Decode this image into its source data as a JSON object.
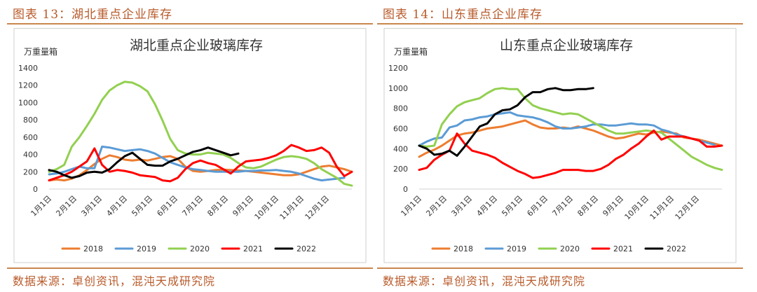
{
  "left": {
    "fig_title": "图表 13：湖北重点企业库存",
    "source": "数据来源：卓创资讯，混沌天成研究院"
  },
  "right": {
    "fig_title": "图表 14：山东重点企业库存",
    "source": "数据来源：卓创资讯，混沌天成研究院"
  },
  "chart_data": [
    {
      "type": "line",
      "title": "湖北重点企业玻璃库存",
      "ylabel": "万重量箱",
      "ylim": [
        0,
        1400
      ],
      "yticks": [
        0,
        200,
        400,
        600,
        800,
        1000,
        1200,
        1400
      ],
      "xlim": [
        0,
        12
      ],
      "xtick_labels": [
        "1月1日",
        "2月1日",
        "3月1日",
        "4月1日",
        "5月1日",
        "6月1日",
        "7月1日",
        "8月1日",
        "9月1日",
        "10月1日",
        "11月1日",
        "12月1日"
      ],
      "x_unit": "month-of-year (0 = 1月1日)",
      "legend_position": "bottom",
      "series": [
        {
          "name": "2018",
          "color": "#ed7d31",
          "x": [
            0,
            0.3,
            0.6,
            0.9,
            1.2,
            1.5,
            1.8,
            2.1,
            2.4,
            2.7,
            3.0,
            3.3,
            3.6,
            3.9,
            4.2,
            4.5,
            4.8,
            5.1,
            5.4,
            5.7,
            6.0,
            6.3,
            6.6,
            6.9,
            7.2,
            7.5,
            7.8,
            8.1,
            8.4,
            8.7,
            9.0,
            9.3,
            9.6,
            9.9,
            10.2,
            10.5,
            10.8,
            11.1,
            11.4,
            11.7,
            12.0
          ],
          "y": [
            100,
            110,
            100,
            120,
            160,
            220,
            290,
            350,
            390,
            370,
            340,
            330,
            340,
            330,
            350,
            370,
            380,
            350,
            260,
            210,
            200,
            210,
            220,
            225,
            220,
            215,
            210,
            200,
            190,
            180,
            170,
            160,
            160,
            170,
            200,
            230,
            260,
            270,
            250,
            230,
            200
          ]
        },
        {
          "name": "2019",
          "color": "#5b9bd5",
          "x": [
            0,
            0.3,
            0.6,
            0.9,
            1.2,
            1.5,
            1.8,
            2.1,
            2.4,
            2.7,
            3.0,
            3.3,
            3.6,
            3.9,
            4.2,
            4.5,
            4.8,
            5.1,
            5.4,
            5.7,
            6.0,
            6.3,
            6.6,
            6.9,
            7.2,
            7.5,
            7.8,
            8.1,
            8.4,
            8.7,
            9.0,
            9.3,
            9.6,
            9.9,
            10.2,
            10.5,
            10.8,
            11.1,
            11.4,
            11.7
          ],
          "y": [
            170,
            180,
            200,
            230,
            260,
            240,
            240,
            490,
            480,
            460,
            440,
            450,
            460,
            440,
            410,
            360,
            310,
            280,
            250,
            230,
            220,
            210,
            200,
            200,
            200,
            200,
            210,
            210,
            215,
            215,
            220,
            210,
            200,
            180,
            150,
            120,
            100,
            110,
            120,
            130
          ]
        },
        {
          "name": "2020",
          "color": "#92d050",
          "x": [
            0,
            0.3,
            0.6,
            0.9,
            1.2,
            1.5,
            1.8,
            2.1,
            2.4,
            2.7,
            3.0,
            3.3,
            3.6,
            3.9,
            4.2,
            4.5,
            4.8,
            5.1,
            5.4,
            5.7,
            6.0,
            6.3,
            6.6,
            6.9,
            7.2,
            7.5,
            7.8,
            8.1,
            8.4,
            8.7,
            9.0,
            9.3,
            9.6,
            9.9,
            10.2,
            10.5,
            10.8,
            11.1,
            11.4,
            11.7,
            12.0
          ],
          "y": [
            200,
            230,
            280,
            490,
            600,
            730,
            870,
            1030,
            1140,
            1200,
            1240,
            1230,
            1190,
            1130,
            980,
            790,
            580,
            450,
            410,
            400,
            400,
            420,
            410,
            400,
            360,
            300,
            250,
            240,
            260,
            300,
            340,
            370,
            380,
            370,
            350,
            300,
            230,
            180,
            130,
            60,
            40
          ]
        },
        {
          "name": "2021",
          "color": "#ff0000",
          "x": [
            0,
            0.3,
            0.6,
            0.9,
            1.2,
            1.5,
            1.8,
            2.1,
            2.4,
            2.7,
            3.0,
            3.3,
            3.6,
            3.9,
            4.2,
            4.5,
            4.8,
            5.1,
            5.4,
            5.7,
            6.0,
            6.3,
            6.6,
            6.9,
            7.2,
            7.5,
            7.8,
            8.1,
            8.4,
            8.7,
            9.0,
            9.3,
            9.6,
            9.9,
            10.2,
            10.5,
            10.8,
            11.1,
            11.4,
            11.7,
            12.0
          ],
          "y": [
            100,
            130,
            160,
            200,
            260,
            320,
            470,
            280,
            200,
            220,
            210,
            190,
            160,
            150,
            140,
            100,
            90,
            130,
            230,
            300,
            330,
            300,
            280,
            230,
            180,
            260,
            320,
            330,
            340,
            360,
            390,
            440,
            510,
            480,
            440,
            450,
            480,
            420,
            260,
            150,
            200
          ]
        },
        {
          "name": "2022",
          "color": "#000000",
          "x": [
            0,
            0.3,
            0.6,
            0.9,
            1.2,
            1.5,
            1.8,
            2.1,
            2.4,
            2.7,
            3.0,
            3.3,
            3.6,
            3.9,
            4.2,
            4.5,
            4.8,
            5.1,
            5.4,
            5.7,
            6.0,
            6.3,
            6.6,
            6.9,
            7.2,
            7.5
          ],
          "y": [
            220,
            200,
            160,
            130,
            150,
            190,
            200,
            190,
            230,
            310,
            380,
            420,
            350,
            280,
            270,
            270,
            320,
            350,
            390,
            430,
            450,
            480,
            450,
            420,
            390,
            410
          ]
        }
      ]
    },
    {
      "type": "line",
      "title": "山东重点企业玻璃库存",
      "ylabel": "万重量箱",
      "ylim": [
        0,
        1200
      ],
      "yticks": [
        0,
        200,
        400,
        600,
        800,
        1000,
        1200
      ],
      "xlim": [
        0,
        12
      ],
      "xtick_labels": [
        "1月1日",
        "2月1日",
        "3月1日",
        "4月1日",
        "5月1日",
        "6月1日",
        "7月1日",
        "8月1日",
        "9月1日",
        "10月1日",
        "11月1日",
        "12月1日"
      ],
      "x_unit": "month-of-year (0 = 1月1日)",
      "legend_position": "bottom",
      "series": [
        {
          "name": "2018",
          "color": "#ed7d31",
          "x": [
            0,
            0.3,
            0.6,
            0.9,
            1.2,
            1.5,
            1.8,
            2.1,
            2.4,
            2.7,
            3.0,
            3.3,
            3.6,
            3.9,
            4.2,
            4.5,
            4.8,
            5.1,
            5.4,
            5.7,
            6.0,
            6.3,
            6.6,
            6.9,
            7.2,
            7.5,
            7.8,
            8.1,
            8.4,
            8.7,
            9.0,
            9.3,
            9.6,
            9.9,
            10.2,
            10.5,
            10.8,
            11.1,
            11.4,
            11.7,
            12.0
          ],
          "y": [
            320,
            360,
            390,
            430,
            480,
            530,
            550,
            560,
            580,
            600,
            610,
            620,
            640,
            660,
            680,
            640,
            610,
            600,
            600,
            610,
            600,
            620,
            600,
            580,
            550,
            520,
            500,
            510,
            530,
            550,
            540,
            560,
            570,
            560,
            550,
            510,
            500,
            490,
            470,
            450,
            430
          ]
        },
        {
          "name": "2019",
          "color": "#5b9bd5",
          "x": [
            0,
            0.3,
            0.6,
            0.9,
            1.2,
            1.5,
            1.8,
            2.1,
            2.4,
            2.7,
            3.0,
            3.3,
            3.6,
            3.9,
            4.2,
            4.5,
            4.8,
            5.1,
            5.4,
            5.7,
            6.0,
            6.3,
            6.6,
            6.9,
            7.2,
            7.5,
            7.8,
            8.1,
            8.4,
            8.7,
            9.0,
            9.3,
            9.6,
            9.9,
            10.2,
            10.5,
            10.8,
            11.1,
            11.4,
            11.7
          ],
          "y": [
            430,
            470,
            500,
            510,
            610,
            630,
            680,
            690,
            710,
            720,
            740,
            750,
            760,
            730,
            720,
            710,
            690,
            660,
            620,
            600,
            600,
            610,
            620,
            640,
            640,
            630,
            630,
            640,
            650,
            640,
            640,
            630,
            590,
            570,
            540,
            520,
            500,
            480,
            460,
            440
          ]
        },
        {
          "name": "2020",
          "color": "#92d050",
          "x": [
            0,
            0.3,
            0.6,
            0.9,
            1.2,
            1.5,
            1.8,
            2.1,
            2.4,
            2.7,
            3.0,
            3.3,
            3.6,
            3.9,
            4.2,
            4.5,
            4.8,
            5.1,
            5.4,
            5.7,
            6.0,
            6.3,
            6.6,
            6.9,
            7.2,
            7.5,
            7.8,
            8.1,
            8.4,
            8.7,
            9.0,
            9.3,
            9.6,
            9.9,
            10.2,
            10.5,
            10.8,
            11.1,
            11.4,
            11.7,
            12.0
          ],
          "y": [
            430,
            420,
            430,
            640,
            740,
            820,
            860,
            880,
            900,
            950,
            990,
            1000,
            990,
            990,
            900,
            830,
            800,
            780,
            760,
            740,
            750,
            740,
            700,
            660,
            620,
            580,
            550,
            550,
            560,
            570,
            580,
            570,
            560,
            500,
            440,
            380,
            320,
            280,
            240,
            210,
            190
          ]
        },
        {
          "name": "2021",
          "color": "#ff0000",
          "x": [
            0,
            0.3,
            0.6,
            0.9,
            1.2,
            1.5,
            1.8,
            2.1,
            2.4,
            2.7,
            3.0,
            3.3,
            3.6,
            3.9,
            4.2,
            4.5,
            4.8,
            5.1,
            5.4,
            5.7,
            6.0,
            6.3,
            6.6,
            6.9,
            7.2,
            7.5,
            7.8,
            8.1,
            8.4,
            8.7,
            9.0,
            9.3,
            9.6,
            9.9,
            10.2,
            10.5,
            10.8,
            11.1,
            11.4,
            11.7,
            12.0
          ],
          "y": [
            190,
            210,
            290,
            340,
            380,
            550,
            450,
            380,
            360,
            340,
            310,
            260,
            220,
            180,
            150,
            110,
            120,
            140,
            160,
            190,
            190,
            190,
            180,
            180,
            200,
            240,
            300,
            340,
            400,
            450,
            520,
            580,
            490,
            520,
            520,
            520,
            500,
            480,
            420,
            420,
            430
          ]
        },
        {
          "name": "2022",
          "color": "#000000",
          "x": [
            0,
            0.3,
            0.6,
            0.9,
            1.2,
            1.5,
            1.8,
            2.1,
            2.4,
            2.7,
            3.0,
            3.3,
            3.6,
            3.9,
            4.2,
            4.5,
            4.8,
            5.1,
            5.4,
            5.7,
            6.0,
            6.3,
            6.6,
            6.9
          ],
          "y": [
            430,
            400,
            340,
            350,
            380,
            330,
            420,
            520,
            620,
            650,
            740,
            780,
            790,
            830,
            910,
            960,
            960,
            990,
            1000,
            980,
            980,
            990,
            990,
            1000
          ]
        }
      ]
    }
  ]
}
